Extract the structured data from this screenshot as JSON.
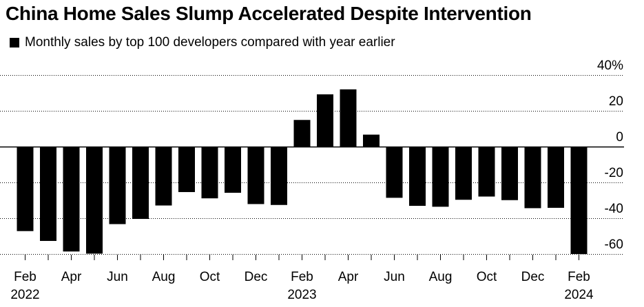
{
  "header": {
    "title": "China Home Sales Slump Accelerated Despite Intervention"
  },
  "legend": {
    "label": "Monthly sales by top 100 developers compared with year earlier",
    "color": "#000000"
  },
  "colors": {
    "bar": "#000000",
    "grid": "#000000",
    "text": "#000000",
    "background": "#ffffff"
  },
  "chart_data": {
    "type": "bar",
    "title": "China Home Sales Slump Accelerated Despite Intervention",
    "subtitle": "Monthly sales by top 100 developers compared with year earlier",
    "xlabel": "",
    "ylabel": "",
    "ylim": [
      -60,
      40
    ],
    "yticks": [
      40,
      20,
      0,
      -20,
      -40,
      -60
    ],
    "ytick_labels": [
      "40%",
      "20",
      "0",
      "-20",
      "-40",
      "-60"
    ],
    "grid": true,
    "categories": [
      "Feb 2022",
      "Mar 2022",
      "Apr 2022",
      "May 2022",
      "Jun 2022",
      "Jul 2022",
      "Aug 2022",
      "Sep 2022",
      "Oct 2022",
      "Nov 2022",
      "Dec 2022",
      "Jan 2023",
      "Feb 2023",
      "Mar 2023",
      "Apr 2023",
      "May 2023",
      "Jun 2023",
      "Jul 2023",
      "Aug 2023",
      "Sep 2023",
      "Oct 2023",
      "Nov 2023",
      "Dec 2023",
      "Jan 2024",
      "Feb 2024"
    ],
    "values": [
      -47.2,
      -52.7,
      -58.6,
      -59.8,
      -43.3,
      -40.4,
      -32.9,
      -25.4,
      -28.9,
      -25.8,
      -32.1,
      -32.6,
      14.9,
      29.2,
      32.0,
      6.7,
      -28.6,
      -33.1,
      -33.6,
      -29.7,
      -27.9,
      -29.9,
      -34.4,
      -34.2,
      -60.0
    ],
    "x_tick_labels": [
      {
        "index": 0,
        "line1": "Feb",
        "line2": "2022"
      },
      {
        "index": 2,
        "line1": "Apr",
        "line2": ""
      },
      {
        "index": 4,
        "line1": "Jun",
        "line2": ""
      },
      {
        "index": 6,
        "line1": "Aug",
        "line2": ""
      },
      {
        "index": 8,
        "line1": "Oct",
        "line2": ""
      },
      {
        "index": 10,
        "line1": "Dec",
        "line2": ""
      },
      {
        "index": 12,
        "line1": "Feb",
        "line2": "2023"
      },
      {
        "index": 14,
        "line1": "Apr",
        "line2": ""
      },
      {
        "index": 16,
        "line1": "Jun",
        "line2": ""
      },
      {
        "index": 18,
        "line1": "Aug",
        "line2": ""
      },
      {
        "index": 20,
        "line1": "Oct",
        "line2": ""
      },
      {
        "index": 22,
        "line1": "Dec",
        "line2": ""
      },
      {
        "index": 24,
        "line1": "Feb",
        "line2": "2024"
      }
    ]
  }
}
